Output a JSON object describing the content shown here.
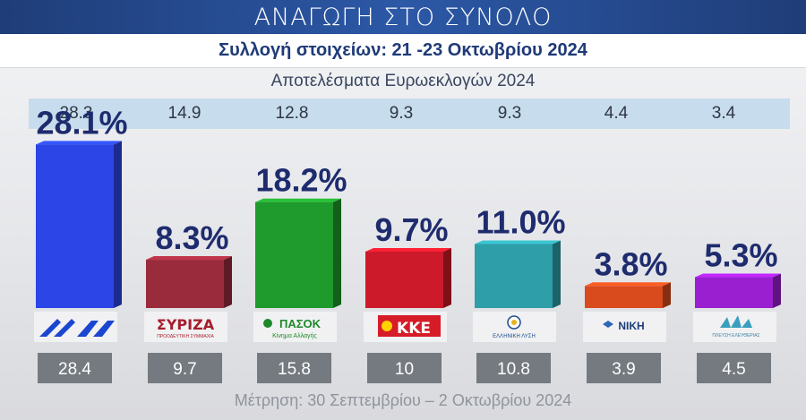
{
  "header": {
    "title": "ΑΝΑΓΩΓΗ ΣΤΟ ΣΥΝΟΛΟ",
    "subtitle": "Συλλογή στοιχείων: 21 -23 Οκτωβρίου 2024"
  },
  "euro": {
    "title": "Αποτελέσματα Ευρωεκλογών 2024",
    "values": [
      "28.3",
      "14.9",
      "12.8",
      "9.3",
      "9.3",
      "4.4",
      "3.4"
    ]
  },
  "footer": {
    "title": "Μέτρηση: 30 Σεπτεμβρίου – 2 Οκτωβρίου 2024"
  },
  "chart_data": {
    "type": "bar",
    "categories": [
      "ΝΔ",
      "ΣΥΡΙΖΑ",
      "ΠΑΣΟΚ",
      "ΚΚΕ",
      "ΕΛΛΗΝΙΚΗ ΛΥΣΗ",
      "ΝΙΚΗ",
      "ΠΛΕΥΣΗ ΕΛΕΥΘΕΡΙΑΣ"
    ],
    "values": [
      28.1,
      8.3,
      18.2,
      9.7,
      11.0,
      3.8,
      5.3
    ],
    "value_labels": [
      "28.1%",
      "8.3%",
      "18.2%",
      "9.7%",
      "11.0%",
      "3.8%",
      "5.3%"
    ],
    "previous_values": [
      "28.4",
      "9.7",
      "15.8",
      "10",
      "10.8",
      "3.9",
      "4.5"
    ],
    "colors": [
      "#2b45e6",
      "#9a2b3c",
      "#1f9a2c",
      "#cc1a2a",
      "#2e9ea8",
      "#d94a1c",
      "#9a1fd0"
    ],
    "logo_texts": [
      "",
      "ΣΥΡΙΖΑ",
      "ΠΑΣΟΚ",
      "ΚΚΕ",
      "ΕΛΛΗΝΙΚΗ ΛΥΣΗ",
      "ΝΙΚΗ",
      "ΠΛΕΥΣΗ ΕΛΕΥΘΕΡΙΑΣ"
    ],
    "logo_subtexts": [
      "",
      "ΠΡΟΟΔΕΥΤΙΚΗ ΣΥΜΜΑΧΙΑ",
      "Κίνημα Αλλαγής",
      "",
      "",
      "",
      ""
    ],
    "ylim": [
      0,
      30
    ]
  }
}
